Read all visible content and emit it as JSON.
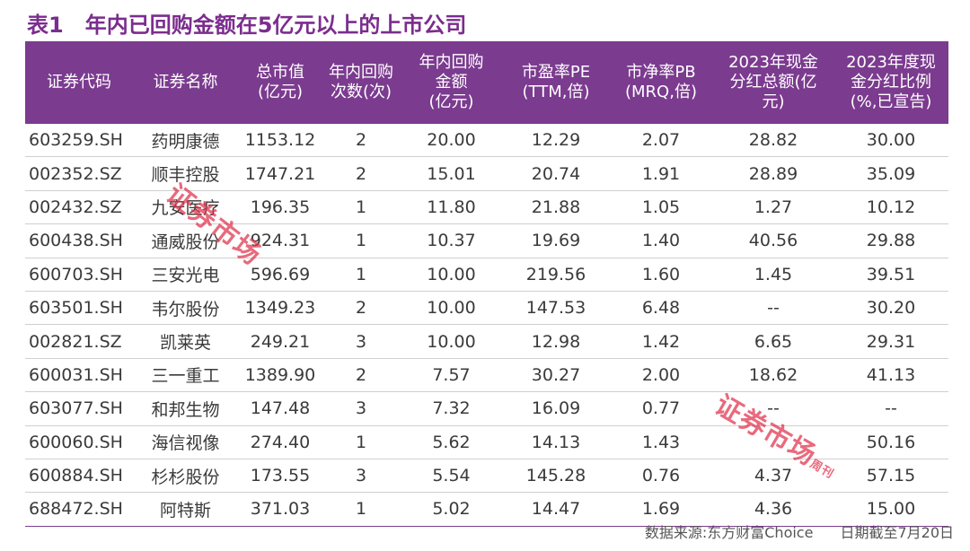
{
  "title": {
    "label": "表1",
    "text": "年内已回购金额在5亿元以上的上市公司"
  },
  "headers": [
    "证券代码",
    "证券名称",
    "总市值\n(亿元)",
    "年内回购\n次数(次)",
    "年内回购\n金额\n(亿元)",
    "市盈率PE\n(TTM,倍)",
    "市净率PB\n(MRQ,倍)",
    "2023年现金\n分红总额(亿\n元)",
    "2023年度现\n金分红比例\n(%,已宣告)"
  ],
  "rows": [
    [
      "603259.SH",
      "药明康德",
      "1153.12",
      "2",
      "20.00",
      "12.29",
      "2.07",
      "28.82",
      "30.00"
    ],
    [
      "002352.SZ",
      "顺丰控股",
      "1747.21",
      "2",
      "15.01",
      "20.74",
      "1.91",
      "28.89",
      "35.09"
    ],
    [
      "002432.SZ",
      "九安医疗",
      "196.35",
      "1",
      "11.80",
      "21.88",
      "1.05",
      "1.27",
      "10.12"
    ],
    [
      "600438.SH",
      "通威股份",
      "924.31",
      "1",
      "10.37",
      "19.69",
      "1.40",
      "40.56",
      "29.88"
    ],
    [
      "600703.SH",
      "三安光电",
      "596.69",
      "1",
      "10.00",
      "219.56",
      "1.60",
      "1.45",
      "39.51"
    ],
    [
      "603501.SH",
      "韦尔股份",
      "1349.23",
      "2",
      "10.00",
      "147.53",
      "6.48",
      "--",
      "30.20"
    ],
    [
      "002821.SZ",
      "凯莱英",
      "249.21",
      "3",
      "10.00",
      "12.98",
      "1.42",
      "6.65",
      "29.31"
    ],
    [
      "600031.SH",
      "三一重工",
      "1389.90",
      "2",
      "7.57",
      "30.27",
      "2.00",
      "18.62",
      "41.13"
    ],
    [
      "603077.SH",
      "和邦生物",
      "147.48",
      "3",
      "7.32",
      "16.09",
      "0.77",
      "--",
      "--"
    ],
    [
      "600060.SH",
      "海信视像",
      "274.40",
      "1",
      "5.62",
      "14.13",
      "1.43",
      "",
      "50.16"
    ],
    [
      "600884.SH",
      "杉杉股份",
      "173.55",
      "3",
      "5.54",
      "145.28",
      "0.76",
      "4.37",
      "57.15"
    ],
    [
      "688472.SH",
      "阿特斯",
      "371.03",
      "1",
      "5.02",
      "14.47",
      "1.69",
      "4.36",
      "15.00"
    ]
  ],
  "footer": {
    "source": "数据来源:东方财富Choice",
    "date": "日期截至7月20日"
  },
  "watermark": {
    "text": "证券市场",
    "small": "周刊",
    "color": "#e0314b"
  }
}
